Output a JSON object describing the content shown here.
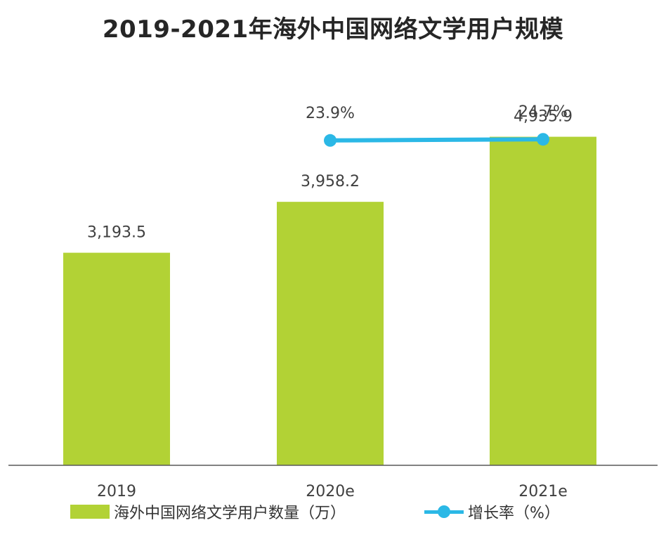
{
  "title": "2019-2021年海外中国网络文学用户规模",
  "chart_data": {
    "type": "bar",
    "categories": [
      "2019",
      "2020e",
      "2021e"
    ],
    "series": [
      {
        "name": "海外中国网络文学用户数量（万）",
        "type": "bar",
        "values": [
          3193.5,
          3958.2,
          4935.9
        ],
        "labels": [
          "3,193.5",
          "3,958.2",
          "4,935.9"
        ],
        "color": "#b2d235"
      },
      {
        "name": "增长率（%）",
        "type": "line",
        "values": [
          null,
          23.9,
          24.7
        ],
        "labels": [
          "",
          "23.9%",
          "24.7%"
        ],
        "color": "#2bb8e6"
      }
    ],
    "ylim": [
      0,
      5850
    ],
    "grid": false,
    "legend_position": "bottom"
  }
}
